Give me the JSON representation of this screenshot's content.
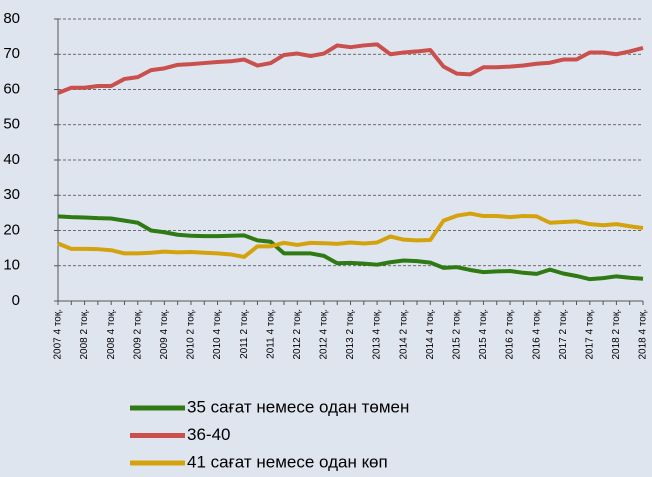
{
  "chart_data": {
    "type": "line",
    "categories": [
      "2007 4 тоқ.",
      null,
      "2008 2 тоқ.",
      null,
      "2008 4 тоқ.",
      null,
      "2009 2 тоқ.",
      null,
      "2009 4 тоқ.",
      null,
      "2010 2 тоқ.",
      null,
      "2010 4 тоқ.",
      null,
      "2011 2 тоқ.",
      null,
      "2011 4 тоқ.",
      null,
      "2012 2 тоқ.",
      null,
      "2012 4 тоқ.",
      null,
      "2013 2 тоқ.",
      null,
      "2013 4 тоқ.",
      null,
      "2014 2 тоқ.",
      null,
      "2014 4 тоқ.",
      null,
      "2015 2 тоқ.",
      null,
      "2015 4 тоқ.",
      null,
      "2016 2 тоқ.",
      null,
      "2016 4 тоқ.",
      null,
      "2017 2 тоқ.",
      null,
      "2017 4 тоқ.",
      null,
      "2018 2 тоқ.",
      null,
      "2018 4 тоқ."
    ],
    "series": [
      {
        "name": "35 сағат немесе одан төмен",
        "color": "#2f7a12",
        "values": [
          24,
          23.8,
          23.7,
          23.5,
          23.4,
          22.8,
          22.2,
          20,
          19.5,
          18.8,
          18.5,
          18.4,
          18.4,
          18.5,
          18.6,
          17.2,
          16.8,
          13.5,
          13.5,
          13.5,
          12.8,
          10.7,
          10.8,
          10.6,
          10.3,
          11,
          11.5,
          11.3,
          10.9,
          9.4,
          9.6,
          8.8,
          8.2,
          8.4,
          8.5,
          8,
          7.7,
          8.9,
          7.8,
          7.1,
          6.2,
          6.5,
          7,
          6.6,
          6.3
        ]
      },
      {
        "name": "36-40",
        "color": "#c9504c",
        "values": [
          59,
          60.5,
          60.5,
          61,
          61,
          63,
          63.5,
          65.5,
          66,
          67,
          67.2,
          67.5,
          67.8,
          68,
          68.5,
          66.8,
          67.5,
          69.8,
          70.2,
          69.5,
          70.2,
          72.5,
          72,
          72.5,
          72.8,
          70,
          70.5,
          70.8,
          71.2,
          66.5,
          64.5,
          64.3,
          66.3,
          66.3,
          66.5,
          66.8,
          67.3,
          67.6,
          68.5,
          68.5,
          70.5,
          70.5,
          70,
          70.8,
          71.8
        ]
      },
      {
        "name": "41 сағат немесе одан көп",
        "color": "#d4a20c",
        "values": [
          16.3,
          14.8,
          14.8,
          14.7,
          14.4,
          13.5,
          13.5,
          13.7,
          14,
          13.8,
          13.9,
          13.7,
          13.5,
          13.2,
          12.5,
          15.5,
          15.5,
          16.5,
          15.9,
          16.5,
          16.4,
          16.2,
          16.6,
          16.3,
          16.6,
          18.3,
          17.4,
          17.2,
          17.3,
          22.8,
          24.2,
          24.8,
          24.1,
          24.1,
          23.8,
          24.1,
          24,
          22.2,
          22.4,
          22.6,
          21.8,
          21.5,
          21.8,
          21.2,
          20.7
        ]
      }
    ],
    "ylim": [
      0,
      80
    ],
    "yticks": [
      0,
      10,
      20,
      30,
      40,
      50,
      60,
      70,
      80
    ],
    "grid": true,
    "legend": "bottom"
  }
}
